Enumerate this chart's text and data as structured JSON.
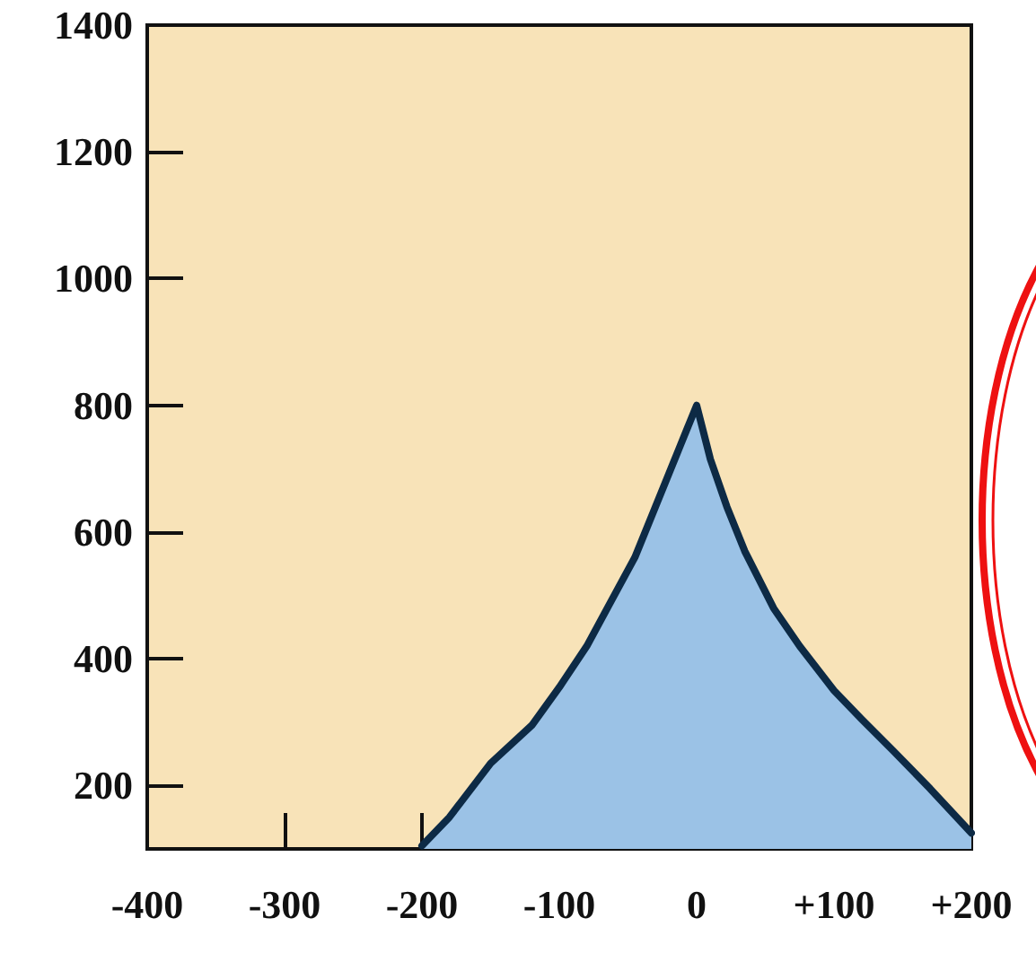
{
  "chart_data": {
    "type": "area",
    "x": [
      -200,
      -180,
      -150,
      -120,
      -100,
      -80,
      -65,
      -45,
      -30,
      -15,
      0,
      10,
      22,
      35,
      56,
      75,
      100,
      120,
      143,
      170,
      200
    ],
    "series": [
      {
        "color": "#0d2a45",
        "values": [
          105,
          150,
          235,
          295,
          355,
          420,
          480,
          560,
          640,
          720,
          800,
          715,
          640,
          570,
          480,
          420,
          350,
          305,
          255,
          195,
          125
        ]
      }
    ],
    "xlim": [
      -400,
      200
    ],
    "xticks": [
      -400,
      -300,
      -200,
      -100,
      0,
      {
        "value": 100,
        "label": "+100"
      },
      {
        "value": 200,
        "label": "+200"
      }
    ],
    "ylim": [
      100,
      1400
    ],
    "yticks": [
      200,
      400,
      600,
      800,
      1000,
      1200,
      1400
    ],
    "marker": "none",
    "line_style": "solid"
  }
}
